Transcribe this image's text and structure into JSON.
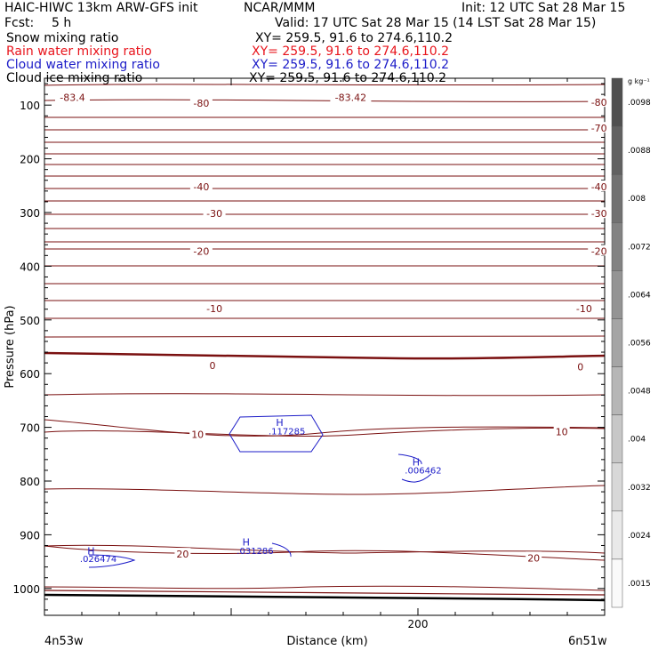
{
  "header": {
    "model": "HAIC-HIWC 13km ARW-GFS init",
    "org": "NCAR/MMM",
    "init": "Init: 12 UTC Sat 28 Mar 15",
    "fcst_label": "Fcst:",
    "fcst_value": "5 h",
    "valid": "Valid: 17 UTC Sat 28 Mar 15 (14 LST Sat 28 Mar 15)"
  },
  "fields": [
    {
      "label": "Snow mixing ratio",
      "xy": "XY= 259.5, 91.6 to 274.6,110.2",
      "color": "#000000"
    },
    {
      "label": "Rain water mixing ratio",
      "xy": "XY= 259.5, 91.6 to 274.6,110.2",
      "color": "#e8141c"
    },
    {
      "label": "Cloud water mixing ratio",
      "xy": "XY= 259.5, 91.6 to 274.6,110.2",
      "color": "#1c1cc8"
    },
    {
      "label": "Cloud ice mixing ratio",
      "xy": "XY= 259.5, 91.6 to 274.6,110.2",
      "color": "#000000"
    }
  ],
  "chart_data": {
    "type": "contour cross-section",
    "xlabel": "Distance (km)",
    "ylabel": "Pressure (hPa)",
    "x_ticks": [
      {
        "value": 200,
        "label": "200"
      }
    ],
    "y_ticks": [
      100,
      200,
      300,
      400,
      500,
      600,
      700,
      800,
      900,
      1000
    ],
    "ylim": [
      1050,
      50
    ],
    "xlim": [
      0,
      300
    ],
    "endpoint_left": "4n53w",
    "endpoint_right": "6n51w",
    "temperature_color": "#7a1010",
    "temperature_label_values": [
      {
        "text": "-83.4",
        "x": 15,
        "p": 86
      },
      {
        "text": "-83.42",
        "x": 164,
        "p": 86
      },
      {
        "text": "-80",
        "x": 84,
        "p": 96
      },
      {
        "text": "-80",
        "x": 297,
        "p": 95
      },
      {
        "text": "-70",
        "x": 297,
        "p": 143
      },
      {
        "text": "-40",
        "x": 84,
        "p": 252
      },
      {
        "text": "-40",
        "x": 297,
        "p": 252
      },
      {
        "text": "-30",
        "x": 91,
        "p": 302
      },
      {
        "text": "-30",
        "x": 297,
        "p": 302
      },
      {
        "text": "-20",
        "x": 84,
        "p": 372
      },
      {
        "text": "-20",
        "x": 297,
        "p": 372
      },
      {
        "text": "-10",
        "x": 91,
        "p": 479
      },
      {
        "text": "-10",
        "x": 289,
        "p": 479
      },
      {
        "text": "0",
        "x": 90,
        "p": 585
      },
      {
        "text": "0",
        "x": 287,
        "p": 587
      },
      {
        "text": "10",
        "x": 82,
        "p": 713
      },
      {
        "text": "10",
        "x": 277,
        "p": 708
      },
      {
        "text": "20",
        "x": 74,
        "p": 936
      },
      {
        "text": "20",
        "x": 262,
        "p": 943
      }
    ],
    "cloud_water_maxima": [
      {
        "text": ".117285",
        "h_x": 124,
        "h_p": 697,
        "x": 120,
        "p": 713
      },
      {
        "text": ".006462",
        "h_x": 197,
        "h_p": 771,
        "x": 193,
        "p": 786
      },
      {
        "text": ".031286",
        "h_x": 106,
        "h_p": 920,
        "x": 103,
        "p": 936
      },
      {
        "text": ".026474",
        "h_x": 23,
        "h_p": 937,
        "x": 19,
        "p": 951
      }
    ],
    "colorbar": {
      "unit": "g kg⁻¹",
      "labels": [
        ".0098",
        ".0088",
        ".008",
        ".0072",
        ".0064",
        ".0056",
        ".0048",
        ".004",
        ".0032",
        ".0024",
        ".0015"
      ]
    }
  }
}
